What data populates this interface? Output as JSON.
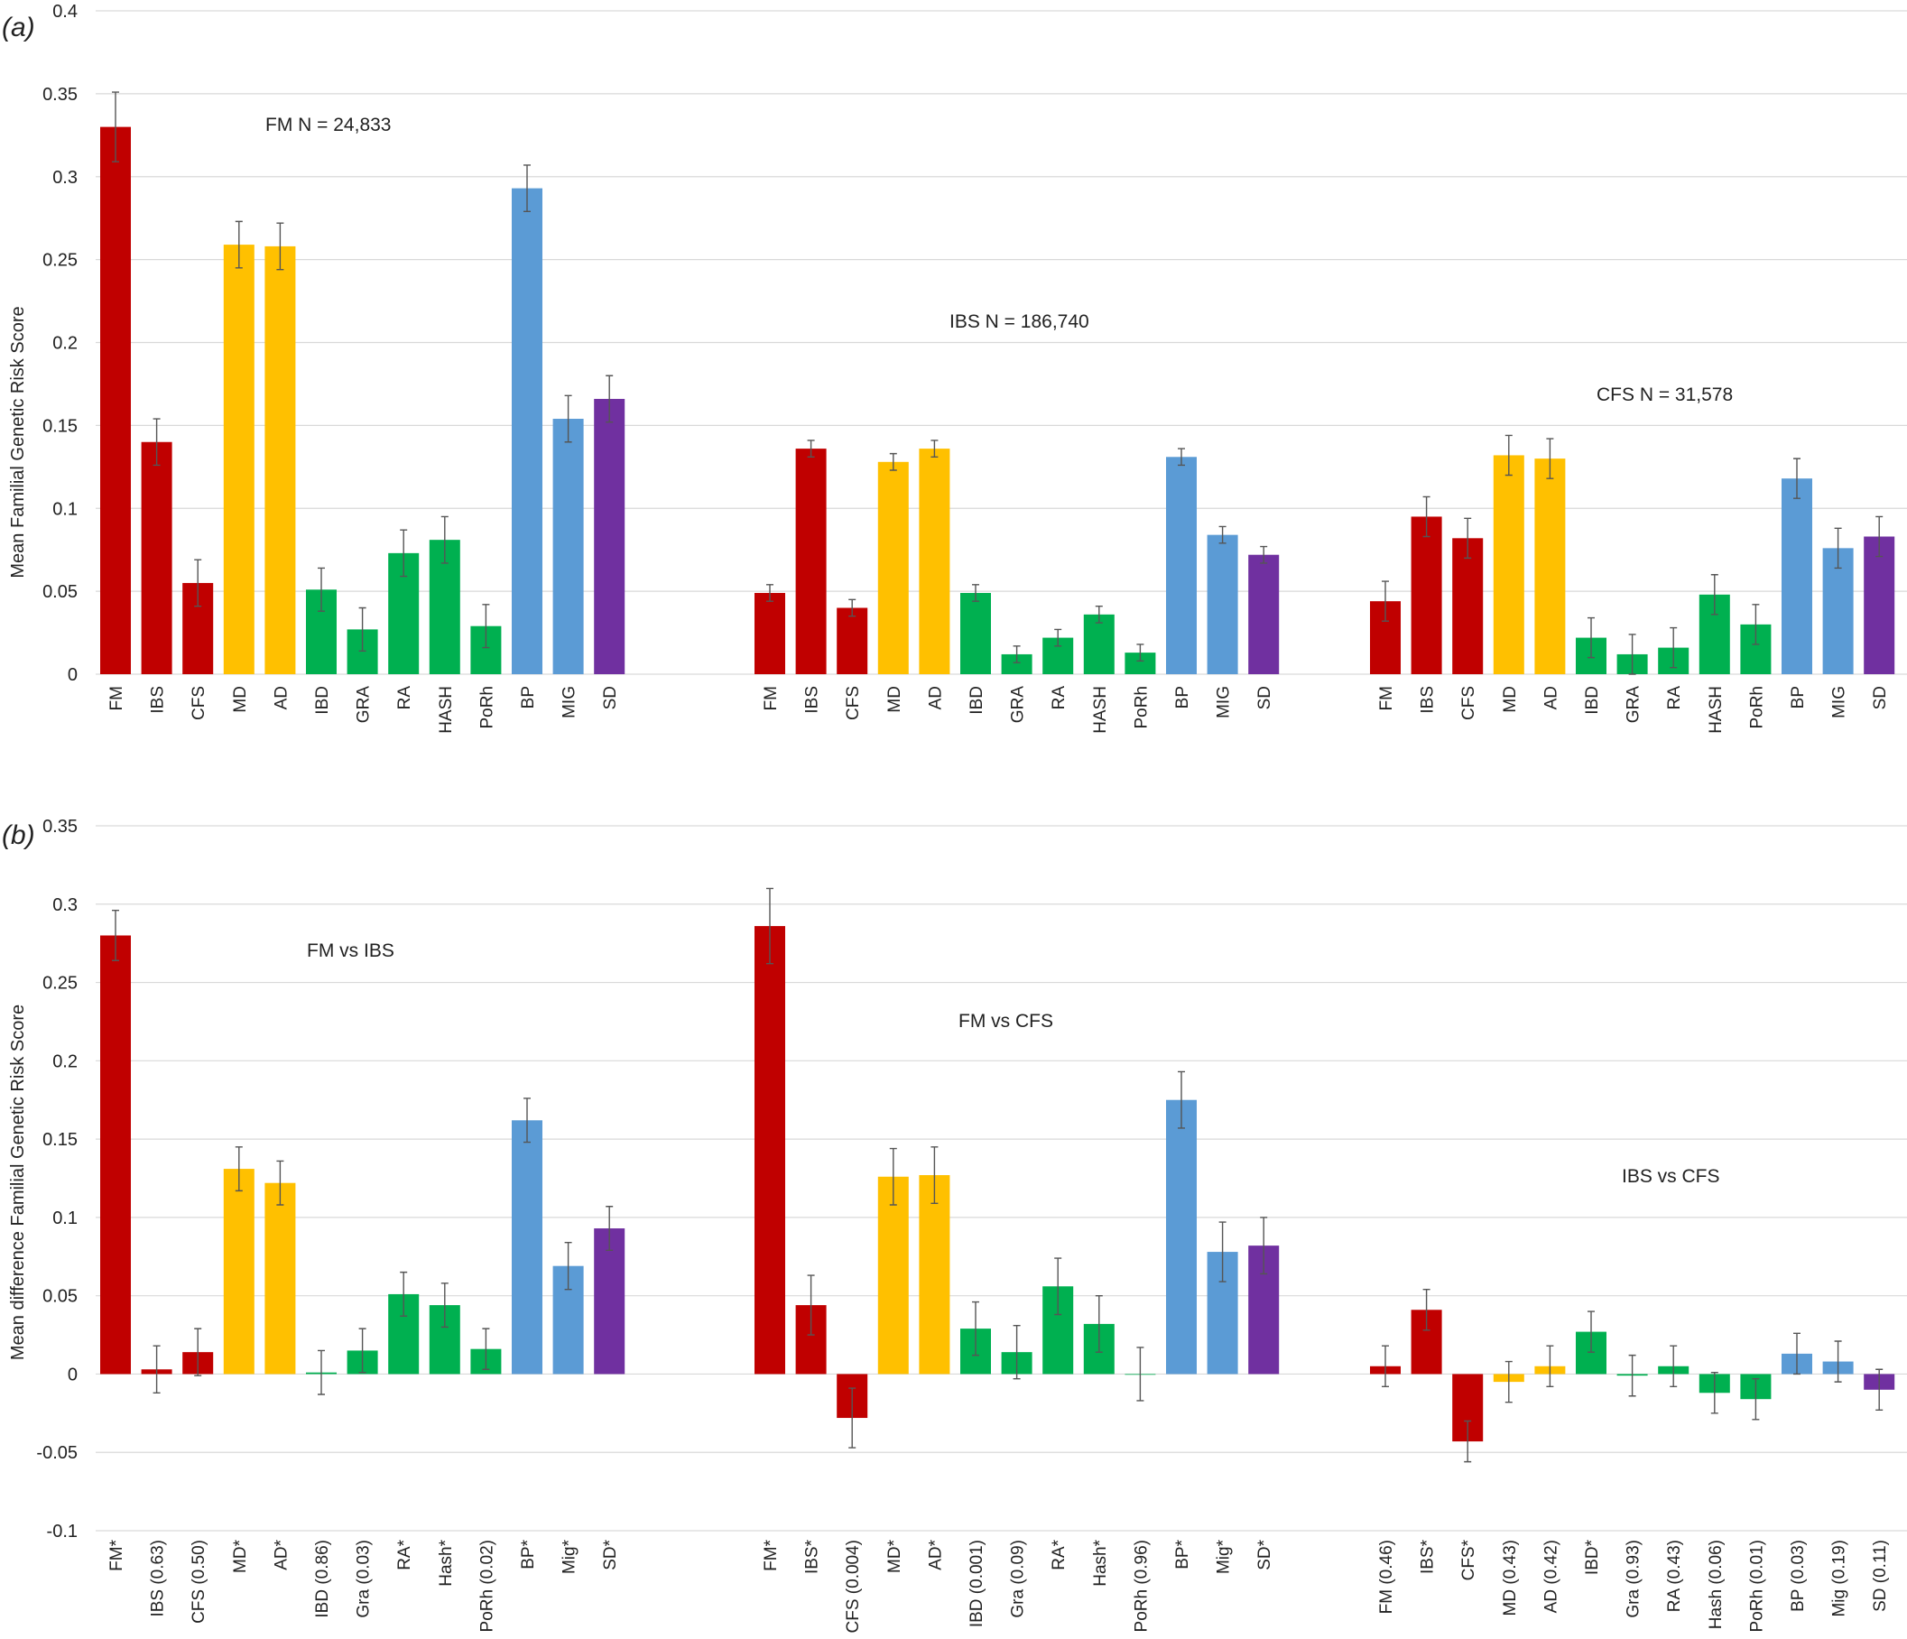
{
  "colors": {
    "red": "#c00000",
    "gold": "#ffc000",
    "green": "#00b050",
    "blue": "#5b9bd5",
    "purple": "#7030a0"
  },
  "chart_data": [
    {
      "panel": "(a)",
      "type": "bar",
      "ylabel": "Mean Familial Genetic Risk Score",
      "ylim": [
        0,
        0.4
      ],
      "yticks": [
        "0",
        "0.05",
        "0.1",
        "0.15",
        "0.2",
        "0.25",
        "0.3",
        "0.35",
        "0.4"
      ],
      "grid": true,
      "groups": [
        {
          "annotation": "FM  N = 24,833",
          "categories": [
            "FM",
            "IBS",
            "CFS",
            "MD",
            "AD",
            "IBD",
            "GRA",
            "RA",
            "HASH",
            "PoRh",
            "BP",
            "MIG",
            "SD"
          ],
          "colors": [
            "red",
            "red",
            "red",
            "gold",
            "gold",
            "green",
            "green",
            "green",
            "green",
            "green",
            "blue",
            "blue",
            "purple"
          ],
          "values": [
            0.33,
            0.14,
            0.055,
            0.259,
            0.258,
            0.051,
            0.027,
            0.073,
            0.081,
            0.029,
            0.293,
            0.154,
            0.166
          ],
          "errors": [
            0.021,
            0.014,
            0.014,
            0.014,
            0.014,
            0.013,
            0.013,
            0.014,
            0.014,
            0.013,
            0.014,
            0.014,
            0.014
          ]
        },
        {
          "annotation": "IBS N = 186,740",
          "categories": [
            "FM",
            "IBS",
            "CFS",
            "MD",
            "AD",
            "IBD",
            "GRA",
            "RA",
            "HASH",
            "PoRh",
            "BP",
            "MIG",
            "SD"
          ],
          "colors": [
            "red",
            "red",
            "red",
            "gold",
            "gold",
            "green",
            "green",
            "green",
            "green",
            "green",
            "blue",
            "blue",
            "purple"
          ],
          "values": [
            0.049,
            0.136,
            0.04,
            0.128,
            0.136,
            0.049,
            0.012,
            0.022,
            0.036,
            0.013,
            0.131,
            0.084,
            0.072
          ],
          "errors": [
            0.005,
            0.005,
            0.005,
            0.005,
            0.005,
            0.005,
            0.005,
            0.005,
            0.005,
            0.005,
            0.005,
            0.005,
            0.005
          ]
        },
        {
          "annotation": "CFS N = 31,578",
          "categories": [
            "FM",
            "IBS",
            "CFS",
            "MD",
            "AD",
            "IBD",
            "GRA",
            "RA",
            "HASH",
            "PoRh",
            "BP",
            "MIG",
            "SD"
          ],
          "colors": [
            "red",
            "red",
            "red",
            "gold",
            "gold",
            "green",
            "green",
            "green",
            "green",
            "green",
            "blue",
            "blue",
            "purple"
          ],
          "values": [
            0.044,
            0.095,
            0.082,
            0.132,
            0.13,
            0.022,
            0.012,
            0.016,
            0.048,
            0.03,
            0.118,
            0.076,
            0.083
          ],
          "errors": [
            0.012,
            0.012,
            0.012,
            0.012,
            0.012,
            0.012,
            0.012,
            0.012,
            0.012,
            0.012,
            0.012,
            0.012,
            0.012
          ]
        }
      ]
    },
    {
      "panel": "(b)",
      "type": "bar",
      "ylabel": "Mean difference  Familial Genetic Risk Score",
      "ylim": [
        -0.1,
        0.35
      ],
      "yticks": [
        "-0.1",
        "-0.05",
        "0",
        "0.05",
        "0.1",
        "0.15",
        "0.2",
        "0.25",
        "0.3",
        "0.35"
      ],
      "grid": true,
      "groups": [
        {
          "annotation": "FM vs IBS",
          "categories": [
            "FM*",
            "IBS (0.63)",
            "CFS (0.50)",
            "MD*",
            "AD*",
            "IBD (0.86)",
            "Gra (0.03)",
            "RA*",
            "Hash*",
            "PoRh (0.02)",
            "BP*",
            "Mig*",
            "SD*"
          ],
          "colors": [
            "red",
            "red",
            "red",
            "gold",
            "gold",
            "green",
            "green",
            "green",
            "green",
            "green",
            "blue",
            "blue",
            "purple"
          ],
          "values": [
            0.28,
            0.003,
            0.014,
            0.131,
            0.122,
            0.001,
            0.015,
            0.051,
            0.044,
            0.016,
            0.162,
            0.069,
            0.093
          ],
          "errors": [
            0.016,
            0.015,
            0.015,
            0.014,
            0.014,
            0.014,
            0.014,
            0.014,
            0.014,
            0.013,
            0.014,
            0.015,
            0.014
          ]
        },
        {
          "annotation": "FM vs CFS",
          "categories": [
            "FM*",
            "IBS*",
            "CFS (0.004)",
            "MD*",
            "AD*",
            "IBD (0.001)",
            "Gra (0.09)",
            "RA*",
            "Hash*",
            "PoRh (0.96)",
            "BP*",
            "Mig*",
            "SD*"
          ],
          "colors": [
            "red",
            "red",
            "red",
            "gold",
            "gold",
            "green",
            "green",
            "green",
            "green",
            "green",
            "blue",
            "blue",
            "purple"
          ],
          "values": [
            0.286,
            0.044,
            -0.028,
            0.126,
            0.127,
            0.029,
            0.014,
            0.056,
            0.032,
            0.0,
            0.175,
            0.078,
            0.082
          ],
          "errors": [
            0.024,
            0.019,
            0.019,
            0.018,
            0.018,
            0.017,
            0.017,
            0.018,
            0.018,
            0.017,
            0.018,
            0.019,
            0.018
          ]
        },
        {
          "annotation": "IBS vs CFS",
          "categories": [
            "FM (0.46)",
            "IBS*",
            "CFS*",
            "MD (0.43)",
            "AD (0.42)",
            "IBD*",
            "Gra (0.93)",
            "RA (0.43)",
            "Hash (0.06)",
            "PoRh (0.01)",
            "BP (0.03)",
            "Mig (0.19)",
            "SD (0.11)"
          ],
          "colors": [
            "red",
            "red",
            "red",
            "gold",
            "gold",
            "green",
            "green",
            "green",
            "green",
            "green",
            "blue",
            "blue",
            "purple"
          ],
          "values": [
            0.005,
            0.041,
            -0.043,
            -0.005,
            0.005,
            0.027,
            -0.001,
            0.005,
            -0.012,
            -0.016,
            0.013,
            0.008,
            -0.01
          ],
          "errors": [
            0.013,
            0.013,
            0.013,
            0.013,
            0.013,
            0.013,
            0.013,
            0.013,
            0.013,
            0.013,
            0.013,
            0.013,
            0.013
          ]
        }
      ]
    }
  ]
}
